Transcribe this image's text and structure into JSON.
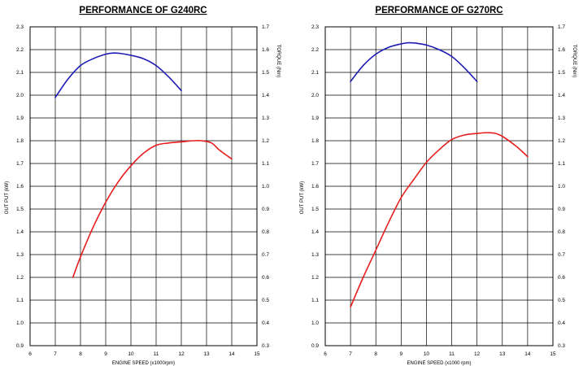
{
  "chart_data": [
    {
      "type": "line",
      "title": "PERFORMANCE OF G240RC",
      "xlabel": "ENGINE SPEED (x1000rpm)",
      "ylabel": "OUT PUT (kW)",
      "y2label": "TORQUE (Nm)",
      "xlim": [
        6,
        15
      ],
      "ylim": [
        0.9,
        2.3
      ],
      "y2lim": [
        0.3,
        1.7
      ],
      "x_ticks": [
        "6",
        "7",
        "8",
        "9",
        "10",
        "11",
        "12",
        "13",
        "14",
        "15"
      ],
      "y_ticks": [
        "0.9",
        "1.0",
        "1.1",
        "1.2",
        "1.3",
        "1.4",
        "1.5",
        "1.6",
        "1.7",
        "1.8",
        "1.9",
        "2.0",
        "2.1",
        "2.2",
        "2.3"
      ],
      "y2_ticks": [
        "0.3",
        "0.4",
        "0.5",
        "0.6",
        "0.7",
        "0.8",
        "0.9",
        "1.0",
        "1.1",
        "1.2",
        "1.3",
        "1.4",
        "1.5",
        "1.6",
        "1.7"
      ],
      "grid": true,
      "series": [
        {
          "axis": "right",
          "color": "#1c1cb4",
          "x": [
            7,
            7.5,
            8,
            8.5,
            9,
            9.3,
            9.6,
            10,
            10.5,
            11,
            11.5,
            12
          ],
          "values": [
            1.39,
            1.47,
            1.53,
            1.56,
            1.58,
            1.585,
            1.583,
            1.575,
            1.56,
            1.53,
            1.48,
            1.42
          ]
        },
        {
          "axis": "left",
          "color": "#e61e1e",
          "x": [
            7.7,
            8,
            8.5,
            9,
            9.5,
            10,
            10.5,
            11,
            11.5,
            12,
            12.5,
            12.8,
            13.2,
            13.5,
            14
          ],
          "values": [
            1.2,
            1.29,
            1.42,
            1.53,
            1.62,
            1.69,
            1.745,
            1.78,
            1.79,
            1.795,
            1.8,
            1.8,
            1.79,
            1.76,
            1.72
          ]
        }
      ]
    },
    {
      "type": "line",
      "title": "PERFORMANCE OF G270RC",
      "xlabel": "ENGINE SPEED (x1000 rpm)",
      "ylabel": "OUT PUT (kW)",
      "y2label": "TORQUE (Nm)",
      "xlim": [
        6,
        15
      ],
      "ylim": [
        0.9,
        2.3
      ],
      "y2lim": [
        0.3,
        1.7
      ],
      "x_ticks": [
        "6",
        "7",
        "8",
        "9",
        "10",
        "11",
        "12",
        "13",
        "14",
        "15"
      ],
      "y_ticks": [
        "0.9",
        "1.0",
        "1.1",
        "1.2",
        "1.3",
        "1.4",
        "1.5",
        "1.6",
        "1.7",
        "1.8",
        "1.9",
        "2.0",
        "2.1",
        "2.2",
        "2.3"
      ],
      "y2_ticks": [
        "0.3",
        "0.4",
        "0.5",
        "0.6",
        "0.7",
        "0.8",
        "0.9",
        "1.0",
        "1.1",
        "1.2",
        "1.3",
        "1.4",
        "1.5",
        "1.6",
        "1.7"
      ],
      "grid": true,
      "series": [
        {
          "axis": "right",
          "color": "#1c1cb4",
          "x": [
            7,
            7.5,
            8,
            8.5,
            9,
            9.3,
            9.6,
            10,
            10.5,
            11,
            11.5,
            12
          ],
          "values": [
            1.46,
            1.53,
            1.58,
            1.61,
            1.625,
            1.63,
            1.628,
            1.62,
            1.6,
            1.57,
            1.52,
            1.46
          ]
        },
        {
          "axis": "left",
          "color": "#e61e1e",
          "x": [
            7,
            7.5,
            8,
            8.5,
            9,
            9.5,
            10,
            10.5,
            11,
            11.5,
            12,
            12.5,
            12.9,
            13.5,
            14
          ],
          "values": [
            1.07,
            1.2,
            1.32,
            1.44,
            1.55,
            1.63,
            1.705,
            1.76,
            1.805,
            1.825,
            1.832,
            1.835,
            1.825,
            1.78,
            1.73
          ]
        }
      ]
    }
  ]
}
